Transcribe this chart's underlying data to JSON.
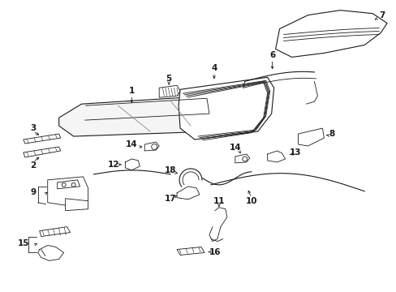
{
  "bg_color": "#ffffff",
  "line_color": "#1a1a1a",
  "figsize": [
    4.89,
    3.6
  ],
  "dpi": 100,
  "lw_main": 0.8,
  "lw_thin": 0.6,
  "label_fs": 7.5
}
